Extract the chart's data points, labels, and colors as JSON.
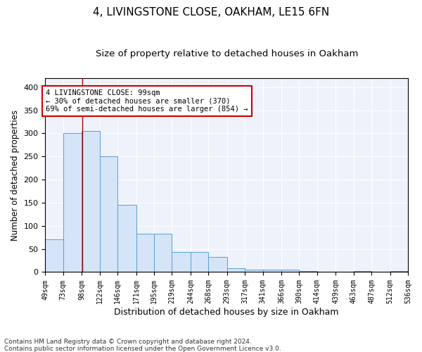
{
  "title1": "4, LIVINGSTONE CLOSE, OAKHAM, LE15 6FN",
  "title2": "Size of property relative to detached houses in Oakham",
  "xlabel": "Distribution of detached houses by size in Oakham",
  "ylabel": "Number of detached properties",
  "footnote1": "Contains HM Land Registry data © Crown copyright and database right 2024.",
  "footnote2": "Contains public sector information licensed under the Open Government Licence v3.0.",
  "bin_edges": [
    49,
    73,
    98,
    122,
    146,
    171,
    195,
    219,
    244,
    268,
    293,
    317,
    341,
    366,
    390,
    414,
    439,
    463,
    487,
    512,
    536
  ],
  "bar_heights": [
    70,
    300,
    305,
    250,
    145,
    83,
    83,
    44,
    44,
    33,
    8,
    5,
    5,
    5,
    2,
    0,
    0,
    3,
    0,
    3
  ],
  "bar_color": "#d6e4f7",
  "bar_edge_color": "#5a9fd4",
  "property_size": 99,
  "vline_color": "#a00000",
  "annotation_line1": "4 LIVINGSTONE CLOSE: 99sqm",
  "annotation_line2": "← 30% of detached houses are smaller (370)",
  "annotation_line3": "69% of semi-detached houses are larger (854) →",
  "annotation_box_color": "#ffffff",
  "annotation_box_edge_color": "#cc0000",
  "ylim": [
    0,
    420
  ],
  "background_color": "#eef2fb",
  "grid_color": "#ffffff",
  "title1_fontsize": 11,
  "title2_fontsize": 9.5,
  "xlabel_fontsize": 9,
  "ylabel_fontsize": 8.5,
  "annotation_fontsize": 7.5,
  "tick_fontsize": 7
}
